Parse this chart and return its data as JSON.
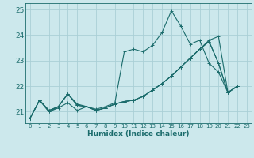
{
  "title": "",
  "xlabel": "Humidex (Indice chaleur)",
  "bg_color": "#cce8ec",
  "grid_color": "#aacfd6",
  "line_color": "#1a6b6b",
  "xlim": [
    -0.5,
    23.5
  ],
  "ylim": [
    20.55,
    25.25
  ],
  "yticks": [
    21,
    22,
    23,
    24,
    25
  ],
  "xticks": [
    0,
    1,
    2,
    3,
    4,
    5,
    6,
    7,
    8,
    9,
    10,
    11,
    12,
    13,
    14,
    15,
    16,
    17,
    18,
    19,
    20,
    21,
    22,
    23
  ],
  "lines": [
    {
      "x": [
        0,
        1,
        2,
        3,
        4,
        5,
        6,
        7,
        8,
        9,
        10,
        11,
        12,
        13,
        14,
        15,
        16,
        17,
        18,
        19,
        20,
        21,
        22
      ],
      "y": [
        20.75,
        21.45,
        21.05,
        21.2,
        21.7,
        21.3,
        21.2,
        21.1,
        21.2,
        21.35,
        23.35,
        23.45,
        23.35,
        23.6,
        24.1,
        24.95,
        24.35,
        23.65,
        23.8,
        22.9,
        22.55,
        21.75,
        22.0
      ]
    },
    {
      "x": [
        0,
        1,
        2,
        3,
        4,
        5,
        6,
        7,
        8,
        9,
        10,
        11,
        12,
        13,
        14,
        15,
        16,
        17,
        18,
        19,
        20,
        21,
        22
      ],
      "y": [
        20.75,
        21.45,
        21.05,
        21.2,
        21.7,
        21.25,
        21.2,
        21.05,
        21.15,
        21.3,
        21.4,
        21.45,
        21.6,
        21.85,
        22.1,
        22.4,
        22.75,
        23.1,
        23.45,
        23.75,
        22.9,
        21.75,
        22.0
      ]
    },
    {
      "x": [
        0,
        1,
        2,
        3,
        4,
        5,
        6,
        7,
        8,
        9,
        10,
        11,
        12,
        13,
        14,
        15,
        16,
        17,
        18,
        19,
        20,
        21,
        22
      ],
      "y": [
        20.75,
        21.45,
        21.0,
        21.2,
        21.7,
        21.25,
        21.2,
        21.05,
        21.15,
        21.3,
        21.4,
        21.45,
        21.6,
        21.85,
        22.1,
        22.4,
        22.75,
        23.1,
        23.45,
        23.75,
        22.9,
        21.75,
        22.0
      ]
    },
    {
      "x": [
        0,
        1,
        2,
        3,
        4,
        5,
        6,
        7,
        8,
        9,
        10,
        11,
        12,
        13,
        14,
        15,
        16,
        17,
        18,
        19,
        20,
        21,
        22
      ],
      "y": [
        20.75,
        21.45,
        21.0,
        21.15,
        21.35,
        21.05,
        21.2,
        21.05,
        21.15,
        21.3,
        21.4,
        21.45,
        21.6,
        21.85,
        22.1,
        22.4,
        22.75,
        23.1,
        23.45,
        23.8,
        23.95,
        21.75,
        22.0
      ]
    }
  ],
  "figsize": [
    3.2,
    2.0
  ],
  "dpi": 100
}
